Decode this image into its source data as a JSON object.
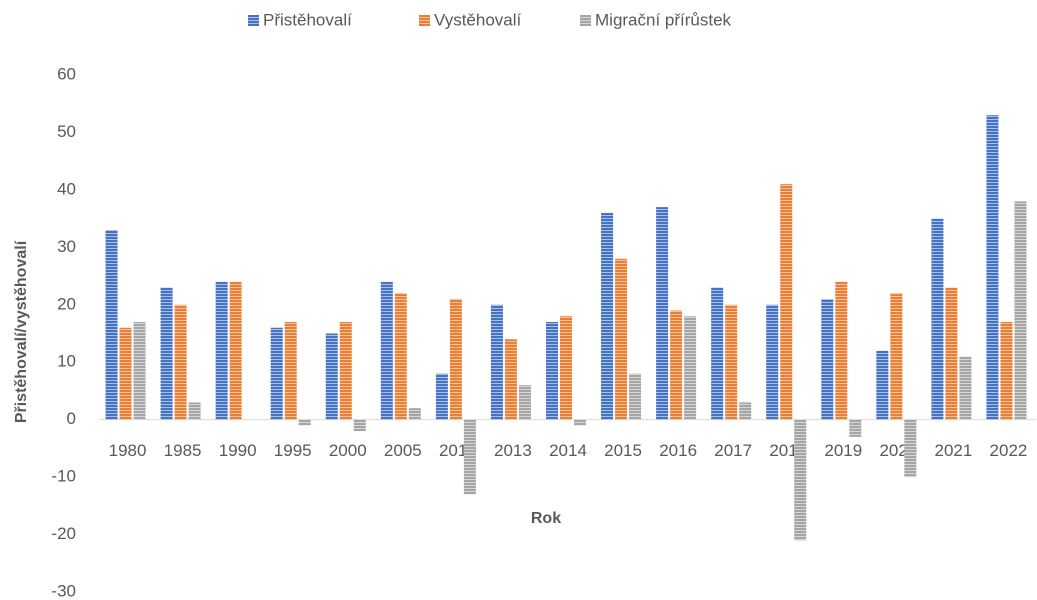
{
  "chart_data": {
    "type": "bar",
    "x_label": "Rok",
    "y_label": "Přistěhovalí/vystěhovalí",
    "categories": [
      "1980",
      "1985",
      "1990",
      "1995",
      "2000",
      "2005",
      "2010",
      "2013",
      "2014",
      "2015",
      "2016",
      "2017",
      "2018",
      "2019",
      "2020",
      "2021",
      "2022"
    ],
    "series": [
      {
        "name": "Přistěhovalí",
        "color": "#4472c4",
        "values": [
          33,
          23,
          24,
          16,
          15,
          24,
          8,
          20,
          17,
          36,
          37,
          23,
          20,
          21,
          12,
          35,
          53
        ]
      },
      {
        "name": "Vystěhovalí",
        "color": "#ed7d31",
        "values": [
          16,
          20,
          24,
          17,
          17,
          22,
          21,
          14,
          18,
          28,
          19,
          20,
          41,
          24,
          22,
          23,
          17
        ]
      },
      {
        "name": "Migrační přírůstek",
        "color": "#a5a5a5",
        "values": [
          17,
          3,
          0,
          -1,
          -2,
          2,
          -13,
          6,
          -1,
          8,
          18,
          3,
          -21,
          -3,
          -10,
          11,
          38
        ]
      }
    ],
    "ylim": [
      -30,
      60
    ],
    "yticks": [
      -30,
      -20,
      -10,
      0,
      10,
      20,
      30,
      40,
      50,
      60
    ],
    "grid": false,
    "legend": "top"
  }
}
